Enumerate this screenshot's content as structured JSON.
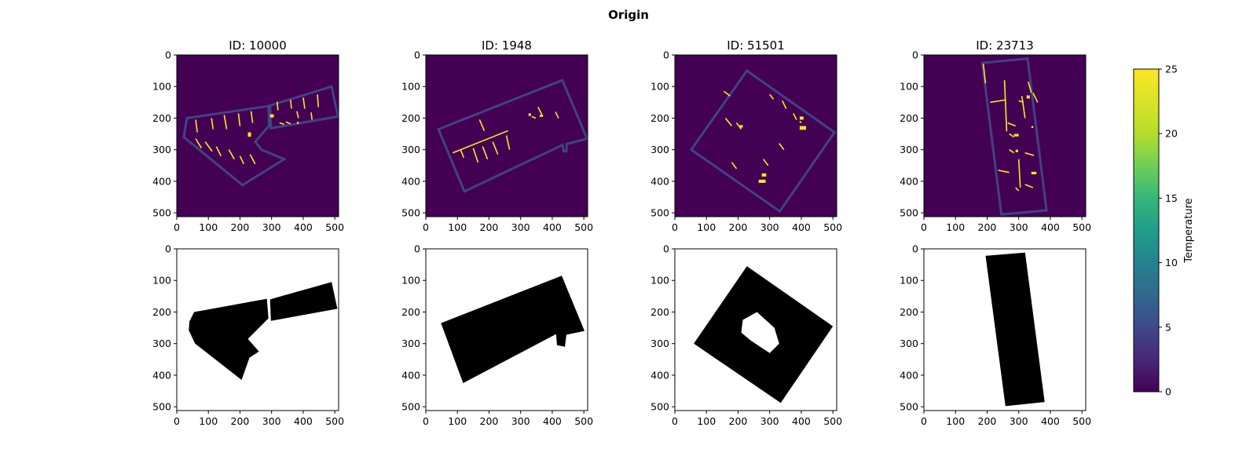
{
  "figure": {
    "suptitle": "Origin",
    "colorbar": {
      "label": "Temperature",
      "ticks": [
        "0",
        "5",
        "10",
        "15",
        "20",
        "25"
      ],
      "range": [
        0,
        25
      ],
      "colormap": "viridis"
    }
  },
  "chart_data": [
    {
      "type": "heatmap",
      "row": "temperature",
      "title": "ID: 10000",
      "xlim": [
        0,
        512
      ],
      "ylim": [
        512,
        0
      ],
      "xticks": [
        "0",
        "100",
        "200",
        "300",
        "400",
        "500"
      ],
      "yticks": [
        "0",
        "100",
        "200",
        "300",
        "400",
        "500"
      ],
      "background_value": 0,
      "wall_value": 5,
      "heat_source_value": 25,
      "outlines": [
        {
          "points": [
            [
              22,
              260
            ],
            [
              32,
              200
            ],
            [
              290,
              162
            ],
            [
              292,
              224
            ],
            [
              248,
              275
            ],
            [
              268,
              300
            ],
            [
              340,
              330
            ],
            [
              208,
              412
            ]
          ]
        },
        {
          "points": [
            [
              295,
              160
            ],
            [
              490,
              100
            ],
            [
              510,
              195
            ],
            [
              298,
              232
            ]
          ]
        }
      ],
      "heat_segments": [
        [
          60,
          205,
          65,
          245
        ],
        [
          110,
          200,
          115,
          235
        ],
        [
          150,
          190,
          158,
          235
        ],
        [
          195,
          185,
          200,
          225
        ],
        [
          235,
          178,
          240,
          215
        ],
        [
          60,
          265,
          78,
          295
        ],
        [
          90,
          275,
          112,
          305
        ],
        [
          125,
          290,
          140,
          320
        ],
        [
          165,
          300,
          182,
          330
        ],
        [
          200,
          320,
          212,
          345
        ],
        [
          232,
          315,
          248,
          345
        ],
        [
          325,
          215,
          340,
          220
        ],
        [
          345,
          212,
          360,
          218
        ],
        [
          318,
          148,
          320,
          175
        ],
        [
          360,
          142,
          363,
          170
        ],
        [
          400,
          135,
          405,
          170
        ],
        [
          445,
          125,
          448,
          165
        ],
        [
          380,
          178,
          385,
          200
        ],
        [
          425,
          182,
          428,
          205
        ]
      ],
      "heat_blobs": [
        [
          225,
          245,
          10,
          14
        ],
        [
          295,
          188,
          12,
          10
        ],
        [
          380,
          212,
          6,
          6
        ]
      ]
    },
    {
      "type": "heatmap",
      "row": "temperature",
      "title": "ID: 1948",
      "xlim": [
        0,
        512
      ],
      "ylim": [
        512,
        0
      ],
      "xticks": [
        "0",
        "100",
        "200",
        "300",
        "400",
        "500"
      ],
      "yticks": [
        "0",
        "100",
        "200",
        "300",
        "400",
        "500"
      ],
      "background_value": 0,
      "wall_value": 5,
      "heat_source_value": 25,
      "outlines": [
        {
          "points": [
            [
              40,
              235
            ],
            [
              432,
              80
            ],
            [
              510,
              265
            ],
            [
              446,
              282
            ],
            [
              445,
              305
            ],
            [
              436,
              305
            ],
            [
              433,
              285
            ],
            [
              122,
              432
            ]
          ]
        }
      ],
      "heat_segments": [
        [
          85,
          310,
          260,
          240
        ],
        [
          150,
          295,
          165,
          340
        ],
        [
          180,
          290,
          195,
          330
        ],
        [
          212,
          275,
          228,
          315
        ],
        [
          255,
          255,
          265,
          300
        ],
        [
          170,
          205,
          185,
          240
        ],
        [
          110,
          300,
          120,
          325
        ],
        [
          355,
          165,
          370,
          195
        ],
        [
          410,
          180,
          420,
          200
        ],
        [
          335,
          195,
          348,
          200
        ]
      ],
      "heat_blobs": [
        [
          325,
          185,
          8,
          8
        ],
        [
          360,
          190,
          10,
          6
        ]
      ]
    },
    {
      "type": "heatmap",
      "row": "temperature",
      "title": "ID: 51501",
      "xlim": [
        0,
        512
      ],
      "ylim": [
        512,
        0
      ],
      "xticks": [
        "0",
        "100",
        "200",
        "300",
        "400",
        "500"
      ],
      "yticks": [
        "0",
        "100",
        "200",
        "300",
        "400",
        "500"
      ],
      "background_value": 0,
      "wall_value": 5,
      "heat_source_value": 25,
      "outlines": [
        {
          "points": [
            [
              228,
              50
            ],
            [
              505,
              245
            ],
            [
              332,
              495
            ],
            [
              52,
              300
            ]
          ]
        }
      ],
      "heat_segments": [
        [
          155,
          115,
          175,
          130
        ],
        [
          195,
          215,
          210,
          235
        ],
        [
          160,
          200,
          180,
          225
        ],
        [
          340,
          145,
          352,
          170
        ],
        [
          375,
          185,
          385,
          205
        ],
        [
          300,
          125,
          312,
          140
        ],
        [
          395,
          210,
          400,
          215
        ],
        [
          280,
          330,
          295,
          350
        ],
        [
          330,
          280,
          345,
          300
        ],
        [
          180,
          340,
          195,
          360
        ]
      ],
      "heat_blobs": [
        [
          205,
          222,
          10,
          8
        ],
        [
          395,
          225,
          20,
          12
        ],
        [
          395,
          195,
          12,
          10
        ],
        [
          265,
          395,
          22,
          10
        ],
        [
          275,
          375,
          14,
          10
        ]
      ]
    },
    {
      "type": "heatmap",
      "row": "temperature",
      "title": "ID: 23713",
      "xlim": [
        0,
        512
      ],
      "ylim": [
        512,
        0
      ],
      "xticks": [
        "0",
        "100",
        "200",
        "300",
        "400",
        "500"
      ],
      "yticks": [
        "0",
        "100",
        "200",
        "300",
        "400",
        "500"
      ],
      "background_value": 0,
      "wall_value": 5,
      "heat_source_value": 25,
      "outlines": [
        {
          "points": [
            [
              185,
              25
            ],
            [
              328,
              12
            ],
            [
              388,
              492
            ],
            [
              245,
              505
            ]
          ]
        }
      ],
      "heat_segments": [
        [
          188,
          28,
          195,
          90
        ],
        [
          210,
          150,
          260,
          142
        ],
        [
          255,
          80,
          262,
          242
        ],
        [
          300,
          145,
          315,
          150
        ],
        [
          310,
          130,
          320,
          200
        ],
        [
          330,
          85,
          340,
          120
        ],
        [
          345,
          120,
          360,
          150
        ],
        [
          270,
          250,
          285,
          260
        ],
        [
          270,
          300,
          285,
          310
        ],
        [
          320,
          410,
          345,
          420
        ],
        [
          290,
          420,
          300,
          430
        ],
        [
          265,
          215,
          290,
          225
        ],
        [
          320,
          310,
          348,
          318
        ],
        [
          235,
          365,
          270,
          372
        ],
        [
          300,
          330,
          305,
          420
        ]
      ],
      "heat_blobs": [
        [
          285,
          250,
          15,
          8
        ],
        [
          290,
          300,
          8,
          8
        ],
        [
          340,
          370,
          16,
          8
        ],
        [
          325,
          128,
          10,
          10
        ],
        [
          340,
          225,
          6,
          6
        ]
      ]
    },
    {
      "type": "heatmap",
      "row": "mask",
      "title": "",
      "xlim": [
        0,
        512
      ],
      "ylim": [
        512,
        0
      ],
      "xticks": [
        "0",
        "100",
        "200",
        "300",
        "400",
        "500"
      ],
      "yticks": [
        "0",
        "100",
        "200",
        "300",
        "400",
        "500"
      ],
      "fills": [
        {
          "points": [
            [
              40,
              230
            ],
            [
              55,
              200
            ],
            [
              285,
              158
            ],
            [
              290,
              220
            ],
            [
              225,
              285
            ],
            [
              260,
              325
            ],
            [
              230,
              345
            ],
            [
              205,
              415
            ],
            [
              58,
              300
            ],
            [
              38,
              258
            ]
          ]
        },
        {
          "points": [
            [
              295,
              160
            ],
            [
              490,
              105
            ],
            [
              508,
              190
            ],
            [
              298,
              228
            ]
          ]
        }
      ]
    },
    {
      "type": "heatmap",
      "row": "mask",
      "title": "",
      "xlim": [
        0,
        512
      ],
      "ylim": [
        512,
        0
      ],
      "xticks": [
        "0",
        "100",
        "200",
        "300",
        "400",
        "500"
      ],
      "yticks": [
        "0",
        "100",
        "200",
        "300",
        "400",
        "500"
      ],
      "fills": [
        {
          "points": [
            [
              48,
              235
            ],
            [
              430,
              85
            ],
            [
              502,
              260
            ],
            [
              445,
              272
            ],
            [
              440,
              310
            ],
            [
              415,
              305
            ],
            [
              412,
              270
            ],
            [
              118,
              425
            ]
          ]
        }
      ]
    },
    {
      "type": "heatmap",
      "row": "mask",
      "title": "",
      "xlim": [
        0,
        512
      ],
      "ylim": [
        512,
        0
      ],
      "xticks": [
        "0",
        "100",
        "200",
        "300",
        "400",
        "500"
      ],
      "yticks": [
        "0",
        "100",
        "200",
        "300",
        "400",
        "500"
      ],
      "fills": [
        {
          "points": [
            [
              228,
              55
            ],
            [
              500,
              245
            ],
            [
              335,
              488
            ],
            [
              60,
              300
            ]
          ]
        }
      ],
      "holes": [
        {
          "points": [
            [
              215,
              225
            ],
            [
              260,
              200
            ],
            [
              315,
              250
            ],
            [
              330,
              300
            ],
            [
              300,
              330
            ],
            [
              240,
              290
            ],
            [
              210,
              265
            ]
          ]
        }
      ]
    },
    {
      "type": "heatmap",
      "row": "mask",
      "title": "",
      "xlim": [
        0,
        512
      ],
      "ylim": [
        512,
        0
      ],
      "xticks": [
        "0",
        "100",
        "200",
        "300",
        "400",
        "500"
      ],
      "yticks": [
        "0",
        "100",
        "200",
        "300",
        "400",
        "500"
      ],
      "fills": [
        {
          "points": [
            [
              195,
              22
            ],
            [
              320,
              12
            ],
            [
              382,
              485
            ],
            [
              258,
              498
            ]
          ]
        }
      ]
    }
  ]
}
